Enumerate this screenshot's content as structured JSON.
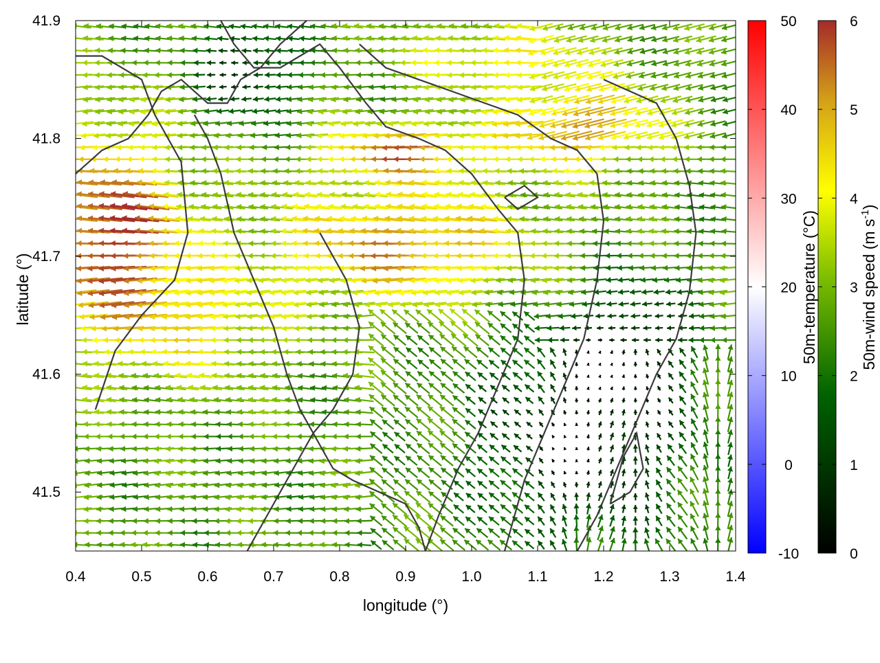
{
  "chart_data": {
    "type": "quiver",
    "xlabel": "longitude (°)",
    "ylabel": "latitude (°)",
    "xlim": [
      0.4,
      1.4
    ],
    "ylim": [
      41.45,
      41.9
    ],
    "x_ticks": [
      "0.4",
      "0.5",
      "0.6",
      "0.7",
      "0.8",
      "0.9",
      "1.0",
      "1.1",
      "1.2",
      "1.3",
      "1.4"
    ],
    "y_ticks": [
      "41.5",
      "41.6",
      "41.7",
      "41.8",
      "41.9"
    ],
    "grid": false,
    "temperature_colorbar": {
      "label": "50m-temperature (°C)",
      "range": [
        -10,
        50
      ],
      "ticks": [
        "-10",
        "0",
        "10",
        "20",
        "30",
        "40",
        "50"
      ],
      "colors": [
        "#0000ff",
        "#ffffff",
        "#ff0000"
      ]
    },
    "wind_colorbar": {
      "label": "50m-wind speed (m s",
      "label_sup": "-1",
      "label_end": ")",
      "range": [
        0,
        6
      ],
      "ticks": [
        "0",
        "1",
        "2",
        "3",
        "4",
        "5",
        "6"
      ],
      "colors": [
        "#000000",
        "#006400",
        "#7fbf00",
        "#ffff00",
        "#d4a017",
        "#a52a2a"
      ]
    },
    "contours": [
      [
        [
          0.43,
          41.57
        ],
        [
          0.46,
          41.62
        ],
        [
          0.5,
          41.65
        ],
        [
          0.55,
          41.68
        ],
        [
          0.57,
          41.72
        ],
        [
          0.56,
          41.78
        ],
        [
          0.52,
          41.82
        ],
        [
          0.5,
          41.85
        ],
        [
          0.47,
          41.86
        ],
        [
          0.44,
          41.87
        ],
        [
          0.4,
          41.87
        ]
      ],
      [
        [
          0.4,
          41.77
        ],
        [
          0.44,
          41.79
        ],
        [
          0.48,
          41.8
        ],
        [
          0.51,
          41.82
        ],
        [
          0.53,
          41.84
        ],
        [
          0.56,
          41.85
        ],
        [
          0.6,
          41.83
        ],
        [
          0.63,
          41.83
        ],
        [
          0.65,
          41.85
        ],
        [
          0.68,
          41.86
        ],
        [
          0.71,
          41.88
        ],
        [
          0.73,
          41.89
        ],
        [
          0.75,
          41.9
        ]
      ],
      [
        [
          0.58,
          41.82
        ],
        [
          0.6,
          41.8
        ],
        [
          0.62,
          41.77
        ],
        [
          0.64,
          41.72
        ],
        [
          0.67,
          41.68
        ],
        [
          0.7,
          41.64
        ],
        [
          0.72,
          41.6
        ],
        [
          0.74,
          41.57
        ],
        [
          0.77,
          41.54
        ],
        [
          0.79,
          41.52
        ],
        [
          0.82,
          41.51
        ],
        [
          0.86,
          41.5
        ],
        [
          0.9,
          41.49
        ],
        [
          0.92,
          41.47
        ],
        [
          0.93,
          41.45
        ]
      ],
      [
        [
          0.62,
          41.9
        ],
        [
          0.64,
          41.88
        ],
        [
          0.67,
          41.86
        ],
        [
          0.71,
          41.86
        ],
        [
          0.74,
          41.87
        ],
        [
          0.77,
          41.88
        ],
        [
          0.8,
          41.86
        ],
        [
          0.84,
          41.83
        ],
        [
          0.87,
          41.81
        ],
        [
          0.92,
          41.8
        ],
        [
          0.96,
          41.79
        ],
        [
          1.0,
          41.77
        ],
        [
          1.04,
          41.74
        ],
        [
          1.07,
          41.72
        ],
        [
          1.08,
          41.68
        ],
        [
          1.07,
          41.63
        ],
        [
          1.04,
          41.59
        ],
        [
          1.01,
          41.55
        ],
        [
          0.98,
          41.52
        ],
        [
          0.95,
          41.48
        ],
        [
          0.93,
          41.45
        ]
      ],
      [
        [
          0.83,
          41.88
        ],
        [
          0.87,
          41.86
        ],
        [
          0.92,
          41.85
        ],
        [
          0.97,
          41.84
        ],
        [
          1.02,
          41.83
        ],
        [
          1.07,
          41.82
        ],
        [
          1.12,
          41.8
        ],
        [
          1.16,
          41.79
        ],
        [
          1.19,
          41.77
        ],
        [
          1.2,
          41.73
        ],
        [
          1.19,
          41.68
        ],
        [
          1.17,
          41.63
        ],
        [
          1.14,
          41.59
        ],
        [
          1.11,
          41.55
        ],
        [
          1.08,
          41.51
        ],
        [
          1.06,
          41.47
        ],
        [
          1.05,
          41.45
        ]
      ],
      [
        [
          0.77,
          41.72
        ],
        [
          0.81,
          41.68
        ],
        [
          0.83,
          41.64
        ],
        [
          0.82,
          41.6
        ],
        [
          0.79,
          41.57
        ],
        [
          0.76,
          41.55
        ],
        [
          0.73,
          41.52
        ],
        [
          0.7,
          41.49
        ],
        [
          0.67,
          41.46
        ],
        [
          0.66,
          41.45
        ]
      ],
      [
        [
          1.2,
          41.85
        ],
        [
          1.24,
          41.84
        ],
        [
          1.28,
          41.83
        ],
        [
          1.31,
          41.8
        ],
        [
          1.33,
          41.76
        ],
        [
          1.34,
          41.72
        ],
        [
          1.33,
          41.67
        ],
        [
          1.31,
          41.63
        ],
        [
          1.28,
          41.6
        ],
        [
          1.25,
          41.56
        ],
        [
          1.22,
          41.52
        ],
        [
          1.19,
          41.48
        ],
        [
          1.16,
          41.45
        ]
      ],
      [
        [
          1.21,
          41.49
        ],
        [
          1.24,
          41.5
        ],
        [
          1.26,
          41.52
        ],
        [
          1.25,
          41.55
        ],
        [
          1.23,
          41.53
        ],
        [
          1.21,
          41.49
        ]
      ],
      [
        [
          1.05,
          41.75
        ],
        [
          1.08,
          41.76
        ],
        [
          1.1,
          41.75
        ],
        [
          1.07,
          41.74
        ],
        [
          1.05,
          41.75
        ]
      ]
    ]
  }
}
